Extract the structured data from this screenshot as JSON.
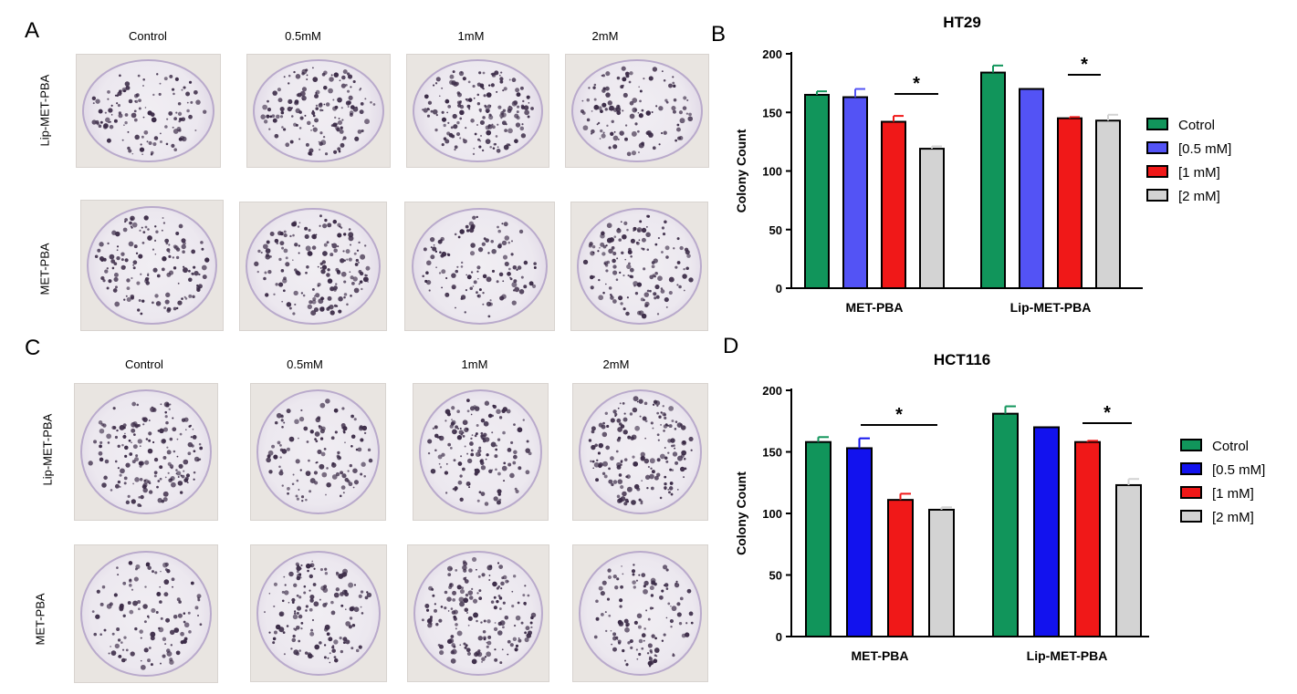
{
  "panels": {
    "A": "A",
    "B": "B",
    "C": "C",
    "D": "D"
  },
  "photo_columns": [
    "Control",
    "0.5mM",
    "1mM",
    "2mM"
  ],
  "photo_rows": [
    "Lip-MET-PBA",
    "MET-PBA"
  ],
  "colors": {
    "control": "#11955b",
    "half_b": "#5353f5",
    "half_d": "#1212ee",
    "one": "#f01818",
    "two": "#d3d3d3",
    "plate_stain": "#3a2a46"
  },
  "chart_data": [
    {
      "type": "bar",
      "title": "HT29",
      "ylabel": "Colony Count",
      "ylim": [
        0,
        200
      ],
      "yticks": [
        "0",
        "50",
        "100",
        "150",
        "200"
      ],
      "categories": [
        "MET-PBA",
        "Lip-MET-PBA"
      ],
      "series": [
        {
          "name": "Cotrol",
          "values": [
            165,
            184
          ],
          "errors": [
            3,
            6
          ]
        },
        {
          "name": "[0.5 mM]",
          "values": [
            163,
            170
          ],
          "errors": [
            7,
            0
          ]
        },
        {
          "name": "[1 mM]",
          "values": [
            142,
            145
          ],
          "errors": [
            5,
            1
          ]
        },
        {
          "name": "[2 mM]",
          "values": [
            119,
            143
          ],
          "errors": [
            2,
            5
          ]
        }
      ],
      "significance": [
        "*",
        "*"
      ],
      "legend": "right"
    },
    {
      "type": "bar",
      "title": "HCT116",
      "ylabel": "Colony Count",
      "ylim": [
        0,
        200
      ],
      "yticks": [
        "0",
        "50",
        "100",
        "150",
        "200"
      ],
      "categories": [
        "MET-PBA",
        "Lip-MET-PBA"
      ],
      "series": [
        {
          "name": "Cotrol",
          "values": [
            158,
            181
          ],
          "errors": [
            4,
            6
          ]
        },
        {
          "name": "[0.5 mM]",
          "values": [
            153,
            170
          ],
          "errors": [
            8,
            0
          ]
        },
        {
          "name": "[1 mM]",
          "values": [
            111,
            158
          ],
          "errors": [
            5,
            1
          ]
        },
        {
          "name": "[2 mM]",
          "values": [
            103,
            123
          ],
          "errors": [
            2,
            5
          ]
        }
      ],
      "significance": [
        "*",
        "*"
      ],
      "legend": "right"
    }
  ]
}
